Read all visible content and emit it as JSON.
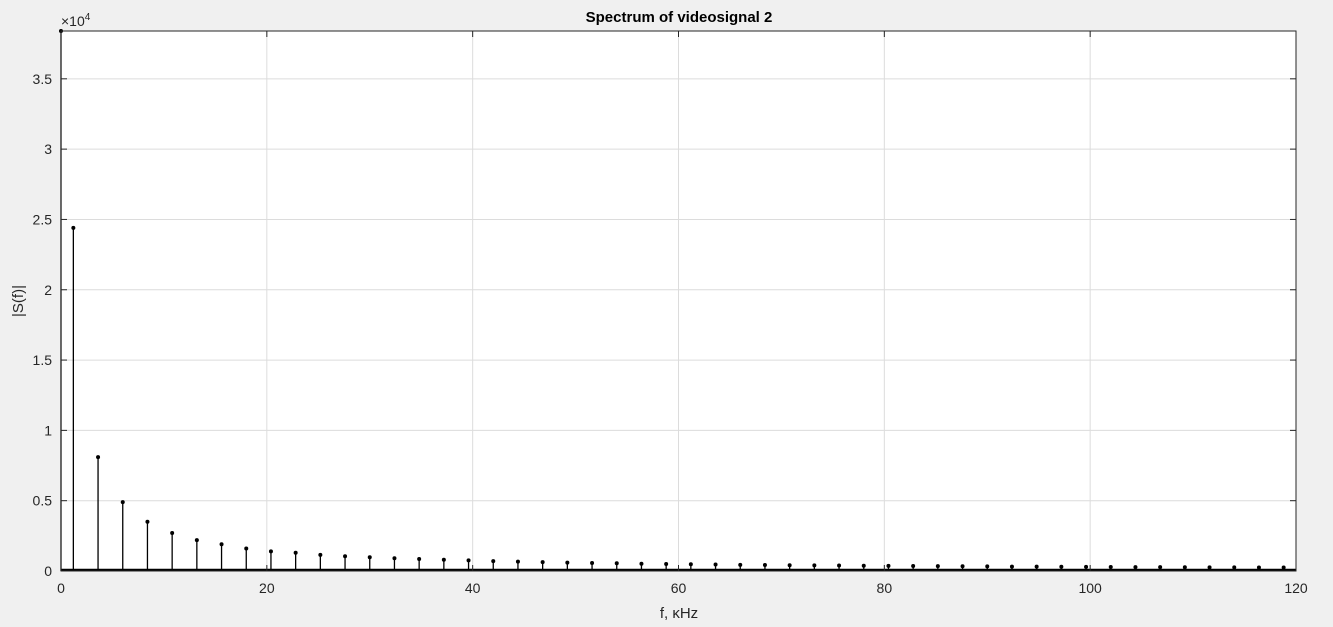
{
  "chart_data": {
    "type": "stem",
    "title": "Spectrum of videosignal 2",
    "xlabel": "f, κHz",
    "ylabel": "|S(f)|",
    "y_exponent_label": "×10",
    "y_exponent_power": "4",
    "xlim": [
      0,
      120
    ],
    "ylim": [
      0,
      38400
    ],
    "xticks": [
      0,
      20,
      40,
      60,
      80,
      100,
      120
    ],
    "xtick_labels": [
      "0",
      "20",
      "40",
      "60",
      "80",
      "100",
      "120"
    ],
    "yticks": [
      0,
      5000,
      10000,
      15000,
      20000,
      25000,
      30000,
      35000
    ],
    "ytick_labels": [
      "0",
      "0.5",
      "1",
      "1.5",
      "2",
      "2.5",
      "3",
      "3.5"
    ],
    "grid": true,
    "colors": {
      "stem": "#000000",
      "grid": "#dcdcdc",
      "axes_bg": "#ffffff",
      "figure_bg": "#f0f0f0"
    },
    "series": [
      {
        "x": [
          0,
          1.2,
          3.6,
          6.0,
          8.4,
          10.8,
          13.2,
          15.6,
          18.0,
          20.4,
          22.8,
          25.2,
          27.6,
          30.0,
          32.4,
          34.8,
          37.2,
          39.6,
          42.0,
          44.4,
          46.8,
          49.2,
          51.6,
          54.0,
          56.4,
          58.8,
          61.2,
          63.6,
          66.0,
          68.4,
          70.8,
          73.2,
          75.6,
          78.0,
          80.4,
          82.8,
          85.2,
          87.6,
          90.0,
          92.4,
          94.8,
          97.2,
          99.6,
          102.0,
          104.4,
          106.8,
          109.2,
          111.6,
          114.0,
          116.4,
          118.8
        ],
        "y": [
          38400,
          24400,
          8100,
          4900,
          3500,
          2700,
          2200,
          1900,
          1600,
          1400,
          1300,
          1150,
          1050,
          980,
          910,
          850,
          800,
          760,
          700,
          670,
          630,
          600,
          570,
          550,
          520,
          500,
          480,
          460,
          440,
          430,
          410,
          400,
          390,
          375,
          365,
          355,
          345,
          335,
          325,
          315,
          308,
          300,
          292,
          286,
          280,
          274,
          268,
          262,
          256,
          250,
          245
        ]
      }
    ]
  }
}
